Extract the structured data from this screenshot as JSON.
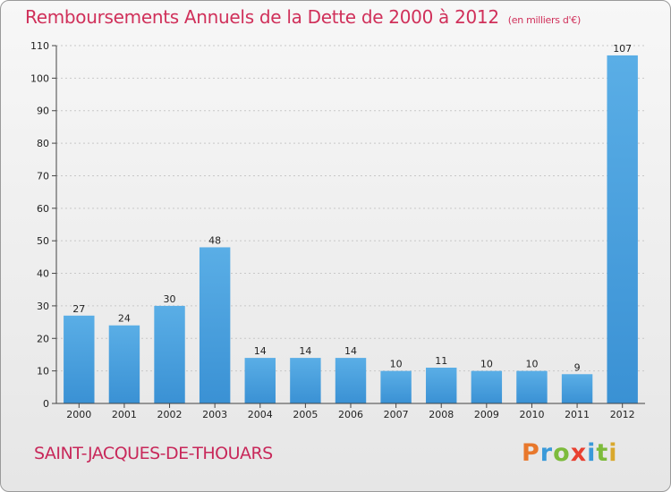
{
  "header": {
    "title": "Remboursements Annuels de la Dette de 2000 à 2012",
    "unit": "(en milliers d'€)"
  },
  "footer": {
    "commune": "SAINT-JACQUES-DE-THOUARS",
    "logo_letters": [
      "P",
      "r",
      "o",
      "x",
      "i",
      "t",
      "i"
    ],
    "logo_colors": [
      "#e8782c",
      "#3a9ad9",
      "#7dbb3c",
      "#e84030",
      "#3a9ad9",
      "#7dbb3c",
      "#d9a82c"
    ]
  },
  "colors": {
    "bar": "#3a91d4",
    "bar_light": "#5aaee6",
    "title": "#d0305a"
  },
  "chart_data": {
    "type": "bar",
    "title": "Remboursements Annuels de la Dette de 2000 à 2012",
    "categories": [
      "2000",
      "2001",
      "2002",
      "2003",
      "2004",
      "2005",
      "2006",
      "2007",
      "2008",
      "2009",
      "2010",
      "2011",
      "2012"
    ],
    "values": [
      27,
      24,
      30,
      48,
      14,
      14,
      14,
      10,
      11,
      10,
      10,
      9,
      107
    ],
    "data_labels": [
      "27",
      "24",
      "30",
      "48",
      "14",
      "14",
      "14",
      "10",
      "11",
      "10",
      "10",
      "9",
      "107"
    ],
    "ylim": [
      0,
      110
    ],
    "yticks": [
      "0",
      "10",
      "20",
      "30",
      "40",
      "50",
      "60",
      "70",
      "80",
      "90",
      "100",
      "110"
    ],
    "grid": true
  }
}
